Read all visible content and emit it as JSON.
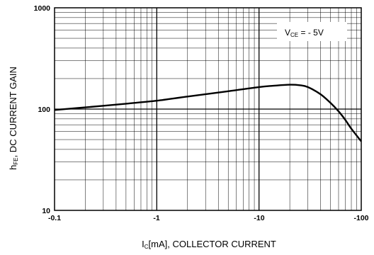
{
  "chart_data": {
    "type": "line",
    "xscale": "log",
    "yscale": "log",
    "xlim": [
      0.1,
      100
    ],
    "ylim": [
      10,
      1000
    ],
    "x_tick_labels": [
      "-0.1",
      "-1",
      "-10",
      "-100"
    ],
    "y_tick_labels": [
      "10",
      "100",
      "1000"
    ],
    "xlabel": {
      "main": "I",
      "sub": "C",
      "rest": "[mA], COLLECTOR CURRENT"
    },
    "ylabel": {
      "main": "h",
      "sub": "FE",
      "rest": ", DC CURRENT GAIN"
    },
    "legend": {
      "main": "V",
      "sub": "CE",
      "rest": " = - 5V",
      "position": "top-right"
    },
    "grid": true,
    "series": [
      {
        "x": [
          0.1,
          0.2,
          0.5,
          1,
          2,
          5,
          10,
          15,
          20,
          25,
          30,
          40,
          50,
          60,
          70,
          80,
          100
        ],
        "y": [
          98,
          104,
          113,
          121,
          133,
          150,
          165,
          171,
          174,
          172,
          165,
          140,
          115,
          95,
          78,
          64,
          48
        ]
      }
    ]
  }
}
